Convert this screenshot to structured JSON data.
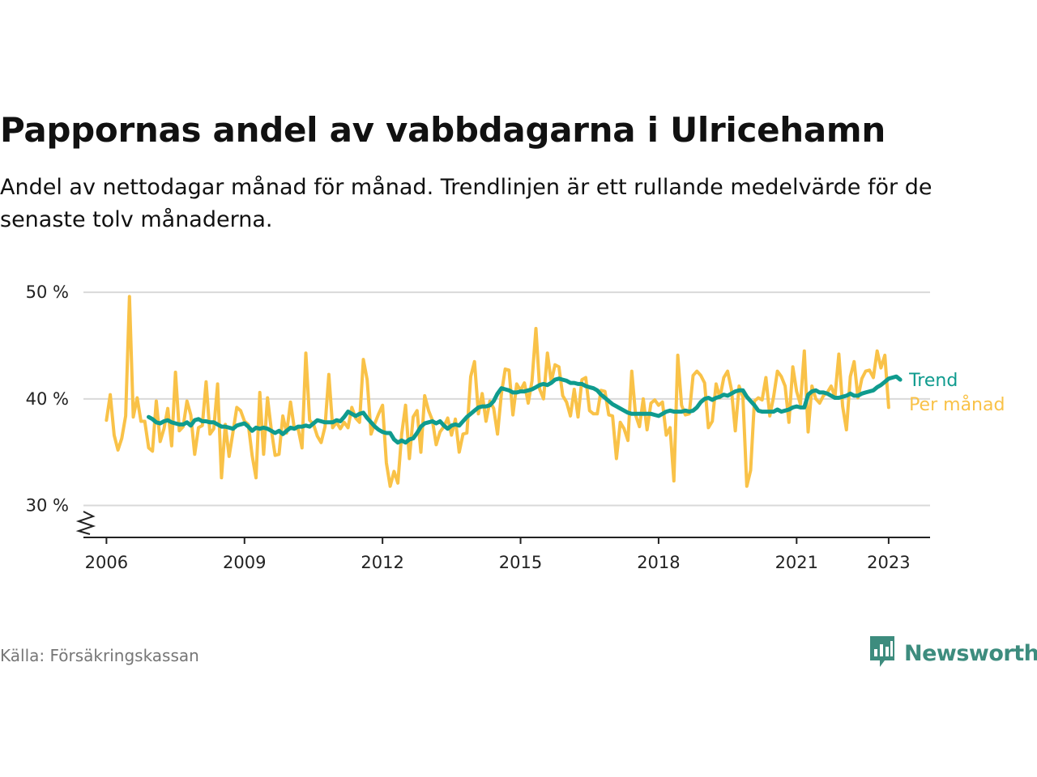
{
  "title": "Pappornas andel av vabbdagarna i Ulricehamn",
  "subtitle": "Andel av nettodagar månad för månad. Trendlinjen är ett rullande medelvärde för de senaste tolv månaderna.",
  "source": "Källa: Försäkringskassan",
  "brand": "Newsworthy",
  "colors": {
    "monthly": "#f9c248",
    "trend": "#0f9b8e",
    "grid": "#d9d9d9",
    "axis": "#222222",
    "brand": "#3d8c7e"
  },
  "chart_data": {
    "type": "line",
    "x_unit": "year",
    "xlim": [
      2005.5,
      2023.9
    ],
    "ylim": [
      27,
      51
    ],
    "y_ticks": [
      30,
      40,
      50
    ],
    "y_tick_labels": [
      "30 %",
      "40 %",
      "50 %"
    ],
    "y_axis_broken": true,
    "x_ticks": [
      2006,
      2009,
      2012,
      2015,
      2018,
      2021,
      2023
    ],
    "x_tick_labels": [
      "2006",
      "2009",
      "2012",
      "2015",
      "2018",
      "2021",
      "2023"
    ],
    "grid": true,
    "legend": "direct labels at line ends (right)",
    "series": [
      {
        "name": "Per månad",
        "color": "#f9c248",
        "x_start": 2006.0,
        "x_step": 0.0833333,
        "values": [
          38.0,
          40.4,
          36.6,
          35.2,
          36.3,
          38.4,
          49.6,
          38.3,
          40.1,
          37.9,
          37.9,
          35.4,
          35.1,
          39.8,
          36.0,
          37.2,
          39.1,
          35.6,
          42.5,
          37.0,
          37.4,
          39.8,
          38.5,
          34.8,
          37.3,
          37.5,
          41.6,
          36.7,
          37.2,
          41.4,
          32.6,
          37.6,
          34.6,
          36.9,
          39.2,
          38.9,
          37.9,
          37.6,
          34.7,
          32.6,
          40.6,
          34.8,
          40.1,
          37.1,
          34.7,
          34.8,
          38.4,
          36.8,
          39.7,
          37.2,
          37.2,
          35.4,
          44.3,
          38.0,
          37.6,
          36.5,
          35.9,
          37.4,
          42.3,
          37.3,
          37.8,
          37.2,
          37.8,
          37.3,
          39.2,
          38.2,
          37.8,
          43.7,
          41.8,
          36.7,
          37.7,
          38.6,
          39.4,
          34.0,
          31.8,
          33.2,
          32.1,
          36.7,
          39.4,
          34.4,
          38.3,
          38.9,
          35.0,
          40.3,
          38.9,
          38.0,
          35.7,
          36.9,
          37.4,
          38.2,
          36.6,
          38.1,
          35.0,
          36.7,
          36.8,
          42.1,
          43.5,
          38.6,
          40.5,
          37.9,
          39.8,
          39.1,
          36.7,
          40.5,
          42.8,
          42.7,
          38.5,
          41.4,
          40.8,
          41.5,
          39.6,
          41.7,
          46.6,
          40.9,
          40.0,
          44.3,
          41.6,
          43.2,
          43.0,
          40.3,
          39.7,
          38.4,
          40.9,
          38.3,
          41.8,
          42.0,
          38.9,
          38.6,
          38.6,
          40.8,
          40.7,
          38.5,
          38.4,
          34.4,
          37.8,
          37.2,
          36.1,
          42.6,
          38.5,
          37.4,
          40.0,
          37.1,
          39.6,
          39.9,
          39.4,
          39.7,
          36.6,
          37.3,
          32.3,
          44.1,
          39.4,
          38.5,
          38.6,
          42.2,
          42.6,
          42.2,
          41.5,
          37.3,
          37.9,
          41.4,
          40.1,
          42.0,
          42.6,
          40.9,
          37.0,
          41.2,
          40.2,
          31.8,
          33.3,
          39.8,
          40.1,
          39.9,
          42.0,
          38.4,
          40.2,
          42.6,
          42.1,
          41.2,
          37.8,
          43.0,
          40.7,
          39.5,
          44.5,
          36.9,
          41.2,
          40.0,
          39.6,
          40.3,
          40.6,
          41.2,
          40.2,
          44.2,
          39.3,
          37.1,
          42.1,
          43.5,
          40.1,
          41.9,
          42.6,
          42.7,
          42.0,
          44.5,
          42.9,
          44.1,
          39.2
        ]
      },
      {
        "name": "Trend",
        "color": "#0f9b8e",
        "x_start": 2006.9167,
        "x_step": 0.0833333,
        "values": [
          38.3,
          38.1,
          37.8,
          37.7,
          37.9,
          38.0,
          37.8,
          37.7,
          37.6,
          37.6,
          37.8,
          37.5,
          38.0,
          38.1,
          37.9,
          37.9,
          37.8,
          37.8,
          37.6,
          37.4,
          37.4,
          37.3,
          37.2,
          37.5,
          37.6,
          37.7,
          37.4,
          37.0,
          37.3,
          37.2,
          37.3,
          37.2,
          37.0,
          36.8,
          37.0,
          36.7,
          37.0,
          37.3,
          37.2,
          37.4,
          37.4,
          37.5,
          37.4,
          37.7,
          38.0,
          37.9,
          37.8,
          37.8,
          37.8,
          38.0,
          37.9,
          38.3,
          38.8,
          38.6,
          38.4,
          38.6,
          38.7,
          38.2,
          37.8,
          37.4,
          37.1,
          36.9,
          36.8,
          36.8,
          36.2,
          35.9,
          36.1,
          35.9,
          36.2,
          36.3,
          36.8,
          37.4,
          37.7,
          37.8,
          37.9,
          37.7,
          37.9,
          37.5,
          37.2,
          37.5,
          37.6,
          37.5,
          37.9,
          38.3,
          38.6,
          38.9,
          39.2,
          39.3,
          39.3,
          39.4,
          39.8,
          40.5,
          41.0,
          40.9,
          40.8,
          40.6,
          40.6,
          40.7,
          40.7,
          40.8,
          40.9,
          41.1,
          41.3,
          41.4,
          41.3,
          41.5,
          41.8,
          41.9,
          41.8,
          41.7,
          41.5,
          41.5,
          41.4,
          41.4,
          41.2,
          41.1,
          41.0,
          40.8,
          40.4,
          40.1,
          39.8,
          39.5,
          39.3,
          39.1,
          38.9,
          38.7,
          38.6,
          38.6,
          38.6,
          38.6,
          38.6,
          38.6,
          38.5,
          38.4,
          38.6,
          38.8,
          38.9,
          38.8,
          38.8,
          38.8,
          38.9,
          38.8,
          38.9,
          39.2,
          39.7,
          40.0,
          40.1,
          39.9,
          40.1,
          40.2,
          40.4,
          40.3,
          40.5,
          40.7,
          40.8,
          40.8,
          40.2,
          39.8,
          39.4,
          38.9,
          38.8,
          38.8,
          38.8,
          38.8,
          39.0,
          38.8,
          38.9,
          39.0,
          39.2,
          39.3,
          39.2,
          39.2,
          40.4,
          40.7,
          40.8,
          40.6,
          40.6,
          40.5,
          40.3,
          40.1,
          40.1,
          40.2,
          40.3,
          40.5,
          40.3,
          40.3,
          40.5,
          40.6,
          40.7,
          40.8,
          41.1,
          41.3,
          41.6,
          41.9,
          42.0,
          42.1,
          41.8
        ]
      }
    ]
  }
}
